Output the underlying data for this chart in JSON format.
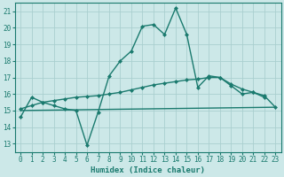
{
  "xlabel": "Humidex (Indice chaleur)",
  "bg_color": "#cce8e8",
  "line_color": "#1a7a6e",
  "grid_color": "#aacfcf",
  "xlim": [
    -0.5,
    23.5
  ],
  "ylim": [
    12.5,
    21.5
  ],
  "yticks": [
    13,
    14,
    15,
    16,
    17,
    18,
    19,
    20,
    21
  ],
  "xticks": [
    0,
    1,
    2,
    3,
    4,
    5,
    6,
    7,
    8,
    9,
    10,
    11,
    12,
    13,
    14,
    15,
    16,
    17,
    18,
    19,
    20,
    21,
    22,
    23
  ],
  "line1_x": [
    0,
    1,
    2,
    3,
    4,
    5,
    6,
    7,
    8,
    9,
    10,
    11,
    12,
    13,
    14,
    15,
    16,
    17,
    18,
    19,
    20,
    21,
    22
  ],
  "line1_y": [
    14.6,
    15.8,
    15.5,
    15.3,
    15.1,
    15.0,
    12.9,
    14.9,
    17.1,
    18.0,
    18.6,
    20.1,
    20.2,
    19.6,
    21.2,
    19.6,
    16.4,
    17.1,
    17.0,
    16.5,
    16.0,
    16.1,
    15.8
  ],
  "line2_x": [
    0,
    1,
    2,
    3,
    4,
    5,
    6,
    7,
    8,
    9,
    10,
    11,
    12,
    13,
    14,
    15,
    16,
    17,
    18,
    19,
    20,
    21,
    22,
    23
  ],
  "line2_y": [
    15.1,
    15.3,
    15.5,
    15.6,
    15.7,
    15.8,
    15.85,
    15.9,
    16.0,
    16.1,
    16.25,
    16.4,
    16.55,
    16.65,
    16.75,
    16.85,
    16.9,
    17.0,
    17.0,
    16.6,
    16.3,
    16.1,
    15.9,
    15.2
  ],
  "line3_x": [
    0,
    23
  ],
  "line3_y": [
    15.0,
    15.2
  ],
  "marker": "D",
  "markersize": 2.0,
  "linewidth": 1.0
}
